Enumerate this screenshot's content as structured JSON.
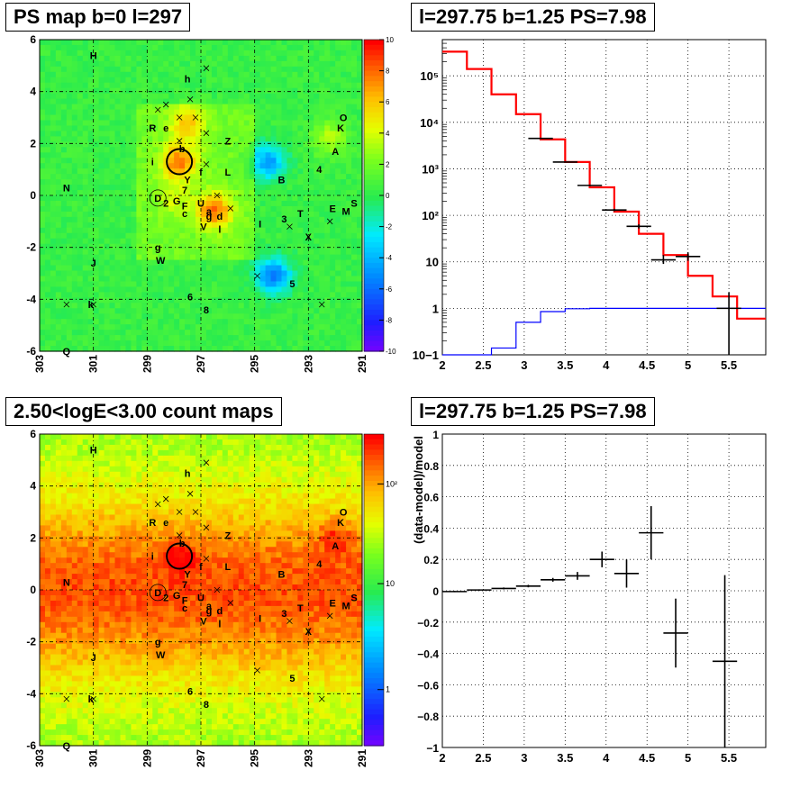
{
  "panels": {
    "tl_title": "PS map b=0 l=297",
    "tr_title": "l=297.75 b=1.25 PS=7.98",
    "bl_title": "2.50<logE<3.00 count maps",
    "br_title": "l=297.75 b=1.25 PS=7.98"
  },
  "map_axes": {
    "x_ticks": [
      "303",
      "301",
      "299",
      "297",
      "295",
      "293",
      "291"
    ],
    "y_ticks": [
      "6",
      "4",
      "2",
      "0",
      "-2",
      "-4",
      "-6"
    ]
  },
  "colorbars": {
    "ps_ticks": [
      "10",
      "8",
      "6",
      "4",
      "2",
      "0",
      "-2",
      "-4",
      "-6",
      "-8",
      "-10"
    ],
    "count_ticks": [
      "10²",
      "10",
      "1"
    ]
  },
  "source_labels": [
    {
      "t": "H",
      "l": 301.0,
      "b": 5.4
    },
    {
      "t": "h",
      "l": 297.5,
      "b": 4.5
    },
    {
      "t": "R",
      "l": 298.8,
      "b": 2.6
    },
    {
      "t": "e",
      "l": 298.3,
      "b": 2.6
    },
    {
      "t": "O",
      "l": 291.7,
      "b": 3.0
    },
    {
      "t": "K",
      "l": 291.8,
      "b": 2.6
    },
    {
      "t": "Z",
      "l": 296.0,
      "b": 2.1
    },
    {
      "t": "A",
      "l": 292.0,
      "b": 1.7
    },
    {
      "t": "b",
      "l": 297.7,
      "b": 1.8
    },
    {
      "t": "i",
      "l": 298.8,
      "b": 1.3
    },
    {
      "t": "4",
      "l": 292.6,
      "b": 1.0
    },
    {
      "t": "L",
      "l": 296.0,
      "b": 0.9
    },
    {
      "t": "f",
      "l": 297.0,
      "b": 0.9
    },
    {
      "t": "Y",
      "l": 297.5,
      "b": 0.6
    },
    {
      "t": "B",
      "l": 294.0,
      "b": 0.6
    },
    {
      "t": "N",
      "l": 302.0,
      "b": 0.3
    },
    {
      "t": "7",
      "l": 297.6,
      "b": 0.2
    },
    {
      "t": "D",
      "l": 298.6,
      "b": -0.1
    },
    {
      "t": "2",
      "l": 298.3,
      "b": -0.3
    },
    {
      "t": "G",
      "l": 297.9,
      "b": -0.2
    },
    {
      "t": "U",
      "l": 297.0,
      "b": -0.3
    },
    {
      "t": "F",
      "l": 297.6,
      "b": -0.4
    },
    {
      "t": "E",
      "l": 292.1,
      "b": -0.5
    },
    {
      "t": "M",
      "l": 291.6,
      "b": -0.6
    },
    {
      "t": "c",
      "l": 297.6,
      "b": -0.7
    },
    {
      "t": "a",
      "l": 296.7,
      "b": -0.6
    },
    {
      "t": "g",
      "l": 296.7,
      "b": -0.8
    },
    {
      "t": "d",
      "l": 296.3,
      "b": -0.8
    },
    {
      "t": "T",
      "l": 293.3,
      "b": -0.7
    },
    {
      "t": "3",
      "l": 293.9,
      "b": -0.9
    },
    {
      "t": "I",
      "l": 294.8,
      "b": -1.1
    },
    {
      "t": "V",
      "l": 296.9,
      "b": -1.2
    },
    {
      "t": "l",
      "l": 296.3,
      "b": -1.3
    },
    {
      "t": "X",
      "l": 293.0,
      "b": -1.6
    },
    {
      "t": "g",
      "l": 298.6,
      "b": -2.0
    },
    {
      "t": "W",
      "l": 298.5,
      "b": -2.5
    },
    {
      "t": "J",
      "l": 301.0,
      "b": -2.6
    },
    {
      "t": "5",
      "l": 293.6,
      "b": -3.4
    },
    {
      "t": "6",
      "l": 297.4,
      "b": -3.9
    },
    {
      "t": "k",
      "l": 301.1,
      "b": -4.2
    },
    {
      "t": "8",
      "l": 296.8,
      "b": -4.4
    },
    {
      "t": "Q",
      "l": 302.0,
      "b": -6.0
    },
    {
      "t": "S",
      "l": 291.3,
      "b": -0.3
    }
  ],
  "chart_data": [
    {
      "type": "heatmap",
      "title": "PS map b=0 l=297",
      "xlim": [
        303,
        291
      ],
      "ylim": [
        -6,
        6
      ],
      "zlim": [
        -10,
        10
      ],
      "grid": true,
      "features": [
        {
          "kind": "hotspot",
          "l": 297.8,
          "b": 1.3,
          "value": 6
        },
        {
          "kind": "hotspot",
          "l": 297.5,
          "b": 2.8,
          "value": 4
        },
        {
          "kind": "hotspot",
          "l": 296.5,
          "b": -0.6,
          "value": 6
        },
        {
          "kind": "hotspot",
          "l": 292.2,
          "b": 2.2,
          "value": 3
        },
        {
          "kind": "hotspot",
          "l": 298.0,
          "b": -0.1,
          "value": 2
        },
        {
          "kind": "deficit",
          "l": 294.5,
          "b": 1.3,
          "value": -5
        },
        {
          "kind": "deficit",
          "l": 294.3,
          "b": -3.1,
          "value": -6
        }
      ]
    },
    {
      "type": "line",
      "title": "l=297.75 b=1.25 PS=7.98",
      "x_scale": "linear",
      "y_scale": "log",
      "xlim": [
        2.0,
        5.95
      ],
      "ylim": [
        0.1,
        600000
      ],
      "grid": true,
      "bin_edges": [
        2.0,
        2.3,
        2.6,
        2.9,
        3.2,
        3.5,
        3.8,
        4.1,
        4.4,
        4.7,
        5.0,
        5.3,
        5.6,
        5.95
      ],
      "series": [
        {
          "color": "#ff0000",
          "values": [
            330000,
            140000,
            40000,
            15000,
            4300,
            1400,
            400,
            120,
            40,
            14,
            5,
            1.8,
            0.6
          ]
        },
        {
          "color": "#0000ff",
          "values": [
            0.1,
            0.1,
            0.14,
            0.5,
            0.85,
            0.98,
            1.0,
            1.0,
            1.0,
            1.0,
            1.0,
            1.0,
            1.0
          ]
        },
        {
          "color": "#000000",
          "points": [
            {
              "x": 3.2,
              "y": 4500,
              "ex": 0.15,
              "ylo": 4400,
              "yhi": 4600
            },
            {
              "x": 3.5,
              "y": 1400,
              "ex": 0.15,
              "ylo": 1370,
              "yhi": 1430
            },
            {
              "x": 3.8,
              "y": 440,
              "ex": 0.15,
              "ylo": 425,
              "yhi": 455
            },
            {
              "x": 4.1,
              "y": 130,
              "ex": 0.15,
              "ylo": 122,
              "yhi": 138
            },
            {
              "x": 4.4,
              "y": 58,
              "ex": 0.15,
              "ylo": 52,
              "yhi": 64
            },
            {
              "x": 4.7,
              "y": 11,
              "ex": 0.15,
              "ylo": 9,
              "yhi": 14
            },
            {
              "x": 5.0,
              "y": 13,
              "ex": 0.15,
              "ylo": 10.5,
              "yhi": 16
            },
            {
              "x": 5.5,
              "y": 1.0,
              "ex": 0.15,
              "ylo": 0.1,
              "yhi": 2.2
            }
          ]
        }
      ]
    },
    {
      "type": "heatmap",
      "title": "2.50<logE<3.00 count maps",
      "xlim": [
        303,
        291
      ],
      "ylim": [
        -6,
        6
      ],
      "z_scale": "log",
      "grid": true,
      "features": [
        {
          "kind": "plane",
          "b": 0,
          "width": 1.5,
          "value": 100
        },
        {
          "kind": "hotspot",
          "l": 297.8,
          "b": 1.3,
          "value": 200
        },
        {
          "kind": "hotspot",
          "l": 292.0,
          "b": 2.0,
          "value": 80
        }
      ]
    },
    {
      "type": "scatter",
      "title": "l=297.75 b=1.25 PS=7.98",
      "ylabel": "(data-model)/model",
      "xlim": [
        2.0,
        5.95
      ],
      "ylim": [
        -1,
        1
      ],
      "grid": true,
      "points": [
        {
          "x": 2.15,
          "y": -0.005,
          "ex": 0.15,
          "ey": 0.004
        },
        {
          "x": 2.45,
          "y": 0.005,
          "ex": 0.15,
          "ey": 0.004
        },
        {
          "x": 2.75,
          "y": 0.015,
          "ex": 0.15,
          "ey": 0.006
        },
        {
          "x": 3.05,
          "y": 0.03,
          "ex": 0.15,
          "ey": 0.008
        },
        {
          "x": 3.35,
          "y": 0.07,
          "ex": 0.15,
          "ey": 0.012
        },
        {
          "x": 3.65,
          "y": 0.095,
          "ex": 0.15,
          "ey": 0.025
        },
        {
          "x": 3.95,
          "y": 0.2,
          "ex": 0.15,
          "ey": 0.05
        },
        {
          "x": 4.25,
          "y": 0.11,
          "ex": 0.15,
          "ey": 0.09
        },
        {
          "x": 4.55,
          "y": 0.37,
          "ex": 0.15,
          "ey": 0.17
        },
        {
          "x": 4.85,
          "y": -0.27,
          "ex": 0.15,
          "ey": 0.22
        },
        {
          "x": 5.45,
          "y": -0.45,
          "ex": 0.15,
          "ey": 0.55
        }
      ]
    }
  ],
  "plot_axes": {
    "x_ticks": [
      "2",
      "2.5",
      "3",
      "3.5",
      "4",
      "4.5",
      "5",
      "5.5"
    ],
    "spec_y_ticks": [
      "10−1",
      "1",
      "10",
      "10²",
      "10³",
      "10⁴",
      "10⁵"
    ],
    "ratio_y_ticks": [
      "1",
      "0.8",
      "0.6",
      "0.4",
      "0.2",
      "0",
      "−0.2",
      "−0.4",
      "−0.6",
      "−0.8",
      "−1"
    ],
    "ratio_ylabel": "(data-model)/model"
  }
}
